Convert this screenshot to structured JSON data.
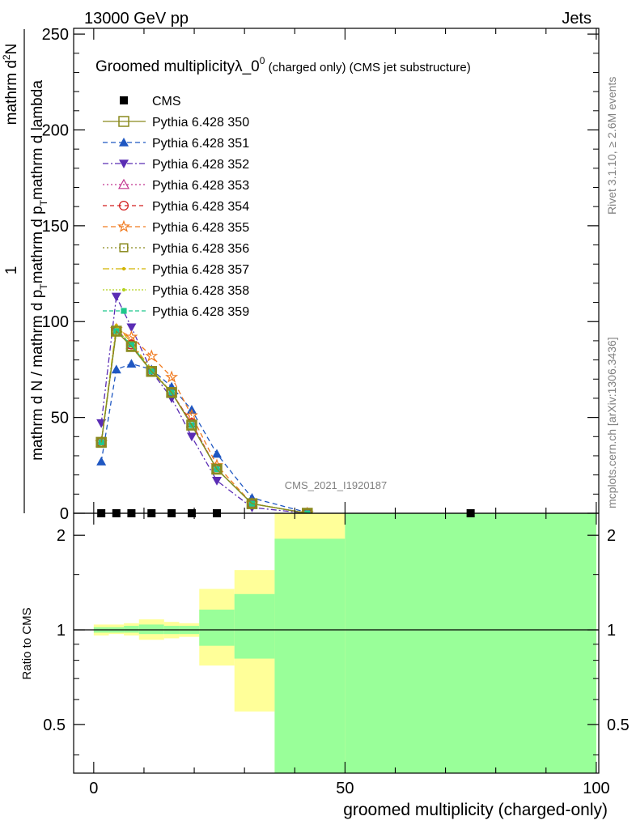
{
  "header": {
    "left": "13000 GeV pp",
    "right": "Jets"
  },
  "side_text": {
    "rivet": "Rivet 3.1.10, ≥ 2.6M events",
    "mcplots": "mcplots.cern.ch [arXiv:1306.3436]"
  },
  "watermark": "CMS_2021_I1920187",
  "chart_data": {
    "type": "line",
    "title_main": "Groomed multiplicityλ_0",
    "title_sup": "0",
    "title_rest": " (charged only) (CMS jet substructure)",
    "ylabel_parts": [
      "1",
      "mathrm d N / mathrm d p",
      "T",
      "mathrm d p",
      "T",
      "mathrm d lambda",
      "mathrm d",
      "2",
      "N"
    ],
    "ylabel_text": "1 / (mathrm d N / mathrm d p_T mathrm d p_T mathrm d lambda) · mathrm d²N",
    "xlabel": "groomed multiplicity (charged-only)",
    "ratio_ylabel": "Ratio to CMS",
    "main_yticks": [
      0,
      50,
      100,
      150,
      200,
      250
    ],
    "xticks": [
      0,
      50,
      100
    ],
    "ratio_yticks": [
      "0.5",
      "1",
      "2"
    ],
    "xlim": [
      -4,
      100.5
    ],
    "ylim": [
      0,
      253
    ],
    "ratio_ylim": [
      0.35,
      2.35
    ],
    "x": [
      1.5,
      4.5,
      7.5,
      11.5,
      15.5,
      19.5,
      24.5,
      31.5,
      42.5
    ],
    "cms": {
      "name": "CMS",
      "points": [
        [
          1.5,
          0
        ],
        [
          4.5,
          0
        ],
        [
          7.5,
          0
        ],
        [
          11.5,
          0
        ],
        [
          15.5,
          0
        ],
        [
          19.5,
          0
        ],
        [
          24.5,
          0
        ],
        [
          75,
          0
        ]
      ]
    },
    "series": [
      {
        "name": "Pythia 6.428 350",
        "color": "#8a8a1e",
        "marker": "square-open",
        "dash": "",
        "values": [
          37,
          95,
          87,
          74,
          63,
          46,
          23,
          5,
          0
        ]
      },
      {
        "name": "Pythia 6.428 351",
        "color": "#1f57c2",
        "marker": "triangle-up",
        "dash": "6,4",
        "values": [
          27,
          75,
          78,
          75,
          66,
          54,
          31,
          8,
          0.4
        ]
      },
      {
        "name": "Pythia 6.428 352",
        "color": "#5a2db4",
        "marker": "triangle-down",
        "dash": "7,3,2,3",
        "values": [
          47,
          113,
          97,
          74,
          60,
          40,
          17,
          3,
          0
        ]
      },
      {
        "name": "Pythia 6.428 353",
        "color": "#c2348f",
        "marker": "triangle-open",
        "dash": "2,3",
        "values": [
          37,
          96,
          88,
          74,
          63,
          47,
          23,
          5,
          0
        ]
      },
      {
        "name": "Pythia 6.428 354",
        "color": "#d21e1e",
        "marker": "circle-open",
        "dash": "5,4",
        "values": [
          37,
          95,
          88,
          74,
          63,
          47,
          23,
          5,
          0
        ]
      },
      {
        "name": "Pythia 6.428 355",
        "color": "#f07a1e",
        "marker": "star-open",
        "dash": "6,4",
        "values": [
          37,
          96,
          92,
          82,
          71,
          51,
          25,
          5,
          0
        ]
      },
      {
        "name": "Pythia 6.428 356",
        "color": "#8a8a1e",
        "marker": "square-open-small",
        "dash": "2,3",
        "values": [
          37,
          95,
          87,
          74,
          63,
          46,
          23,
          5,
          0
        ]
      },
      {
        "name": "Pythia 6.428 357",
        "color": "#d2b400",
        "marker": "dot",
        "dash": "8,3,2,3",
        "values": [
          37,
          98,
          89,
          75,
          63,
          46,
          23,
          5,
          0
        ]
      },
      {
        "name": "Pythia 6.428 358",
        "color": "#b4d21e",
        "marker": "dot",
        "dash": "2,2",
        "values": [
          37,
          96,
          88,
          74,
          63,
          46,
          23,
          5,
          0
        ]
      },
      {
        "name": "Pythia 6.428 359",
        "color": "#1ec88c",
        "marker": "square-small",
        "dash": "5,3",
        "values": [
          37,
          95,
          88,
          74,
          63,
          46,
          23,
          5,
          0
        ]
      }
    ],
    "ratio_bands": {
      "yellow_color": "#ffff99",
      "green_color": "#99ff99",
      "bins": [
        {
          "x": [
            0,
            3
          ],
          "yellow": [
            0.96,
            1.04
          ],
          "green": [
            0.98,
            1.02
          ]
        },
        {
          "x": [
            3,
            6
          ],
          "yellow": [
            0.97,
            1.04
          ],
          "green": [
            0.98,
            1.02
          ]
        },
        {
          "x": [
            6,
            9
          ],
          "yellow": [
            0.96,
            1.05
          ],
          "green": [
            0.98,
            1.03
          ]
        },
        {
          "x": [
            9,
            14
          ],
          "yellow": [
            0.93,
            1.08
          ],
          "green": [
            0.97,
            1.04
          ]
        },
        {
          "x": [
            14,
            17
          ],
          "yellow": [
            0.94,
            1.06
          ],
          "green": [
            0.97,
            1.03
          ]
        },
        {
          "x": [
            17,
            21
          ],
          "yellow": [
            0.95,
            1.05
          ],
          "green": [
            0.97,
            1.03
          ]
        },
        {
          "x": [
            21,
            28
          ],
          "yellow": [
            0.77,
            1.35
          ],
          "green": [
            0.89,
            1.16
          ]
        },
        {
          "x": [
            28,
            36
          ],
          "yellow": [
            0.55,
            1.55
          ],
          "green": [
            0.81,
            1.3
          ]
        },
        {
          "x": [
            36,
            50
          ],
          "yellow": [
            0.3,
            2.6
          ],
          "green": [
            0.3,
            1.95
          ]
        },
        {
          "x": [
            50,
            100
          ],
          "yellow": [
            0.3,
            2.6
          ],
          "green": [
            0.3,
            2.6
          ]
        }
      ]
    },
    "reference_line": 1
  }
}
